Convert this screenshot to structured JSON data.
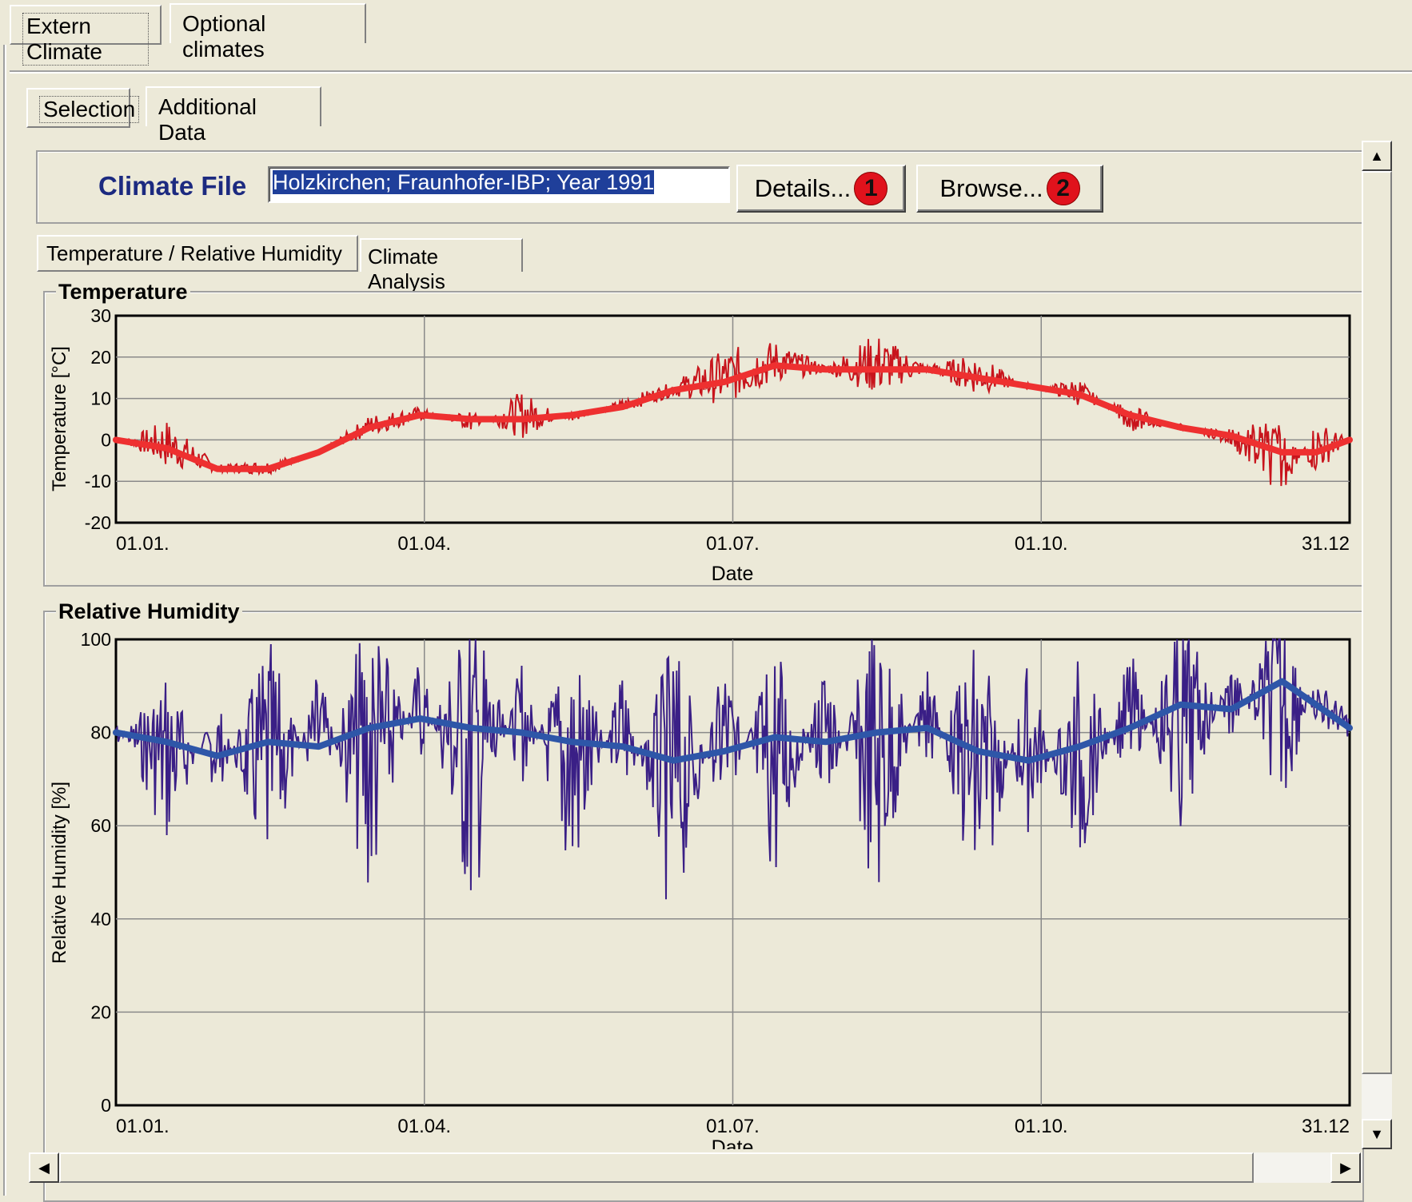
{
  "top_tabs": [
    {
      "label": "Extern Climate",
      "selected": true
    },
    {
      "label": "Optional climates",
      "selected": false
    }
  ],
  "sub_tabs": [
    {
      "label": "Selection",
      "selected": true
    },
    {
      "label": "Additional Data",
      "selected": false
    }
  ],
  "climate_file": {
    "label": "Climate File",
    "value": "Holzkirchen; Fraunhofer-IBP; Year 1991",
    "details_label": "Details...",
    "details_badge": "1",
    "browse_label": "Browse...",
    "browse_badge": "2"
  },
  "chart_tabs": [
    {
      "label": "Temperature / Relative Humidity",
      "selected": true
    },
    {
      "label": "Climate Analysis",
      "selected": false
    }
  ],
  "colors": {
    "temp_raw": "#c8141c",
    "temp_mean": "#ee3030",
    "rh_raw": "#3a1f86",
    "rh_mean": "#2e56a8"
  },
  "chart_data": [
    {
      "type": "line",
      "title": "Temperature",
      "xlabel": "Date",
      "ylabel": "Temperature [°C]",
      "x_ticks": [
        "01.01.",
        "01.04.",
        "01.07.",
        "01.10.",
        "31.12"
      ],
      "y_ticks": [
        "30",
        "20",
        "10",
        "0",
        "-10",
        "-20"
      ],
      "xlim": [
        0,
        365
      ],
      "ylim": [
        -20,
        30
      ],
      "grid": true,
      "series": [
        {
          "values": [
            [
              0,
              -1
            ],
            [
              15,
              5
            ],
            [
              30,
              -6
            ],
            [
              45,
              -5
            ],
            [
              60,
              -3
            ],
            [
              75,
              6
            ],
            [
              90,
              8
            ],
            [
              105,
              2
            ],
            [
              120,
              12
            ],
            [
              135,
              4
            ],
            [
              150,
              10
            ],
            [
              165,
              14
            ],
            [
              180,
              22
            ],
            [
              195,
              24
            ],
            [
              210,
              18
            ],
            [
              225,
              26
            ],
            [
              240,
              18
            ],
            [
              255,
              21
            ],
            [
              270,
              12
            ],
            [
              285,
              15
            ],
            [
              300,
              2
            ],
            [
              315,
              4
            ],
            [
              330,
              -2
            ],
            [
              345,
              -14
            ],
            [
              355,
              5
            ],
            [
              365,
              0
            ]
          ]
        },
        {
          "values": [
            [
              0,
              0
            ],
            [
              15,
              -2
            ],
            [
              30,
              -7
            ],
            [
              45,
              -7
            ],
            [
              60,
              -3
            ],
            [
              75,
              3
            ],
            [
              90,
              6
            ],
            [
              105,
              5
            ],
            [
              120,
              5
            ],
            [
              135,
              6
            ],
            [
              150,
              8
            ],
            [
              165,
              12
            ],
            [
              180,
              14
            ],
            [
              195,
              18
            ],
            [
              210,
              17
            ],
            [
              225,
              17
            ],
            [
              240,
              17
            ],
            [
              255,
              15
            ],
            [
              270,
              13
            ],
            [
              285,
              11
            ],
            [
              300,
              6
            ],
            [
              315,
              3
            ],
            [
              330,
              1
            ],
            [
              345,
              -3
            ],
            [
              355,
              -3
            ],
            [
              365,
              0
            ]
          ]
        }
      ]
    },
    {
      "type": "line",
      "title": "Relative Humidity",
      "xlabel": "Date",
      "ylabel": "Relative Humidity [%]",
      "x_ticks": [
        "01.01.",
        "01.04.",
        "01.07.",
        "01.10.",
        "31.12"
      ],
      "y_ticks": [
        "100",
        "80",
        "60",
        "40",
        "20",
        "0"
      ],
      "xlim": [
        0,
        365
      ],
      "ylim": [
        0,
        100
      ],
      "grid": true,
      "series": [
        {
          "values": [
            [
              0,
              85
            ],
            [
              15,
              55
            ],
            [
              30,
              88
            ],
            [
              45,
              45
            ],
            [
              60,
              95
            ],
            [
              75,
              40
            ],
            [
              90,
              98
            ],
            [
              105,
              38
            ],
            [
              120,
              97
            ],
            [
              135,
              42
            ],
            [
              150,
              96
            ],
            [
              165,
              35
            ],
            [
              180,
              98
            ],
            [
              195,
              45
            ],
            [
              210,
              99
            ],
            [
              225,
              40
            ],
            [
              240,
              98
            ],
            [
              255,
              37
            ],
            [
              270,
              97
            ],
            [
              285,
              48
            ],
            [
              300,
              99
            ],
            [
              315,
              55
            ],
            [
              330,
              97
            ],
            [
              345,
              62
            ],
            [
              355,
              92
            ],
            [
              365,
              84
            ]
          ]
        },
        {
          "values": [
            [
              0,
              80
            ],
            [
              15,
              78
            ],
            [
              30,
              75
            ],
            [
              45,
              78
            ],
            [
              60,
              77
            ],
            [
              75,
              81
            ],
            [
              90,
              83
            ],
            [
              105,
              81
            ],
            [
              120,
              80
            ],
            [
              135,
              78
            ],
            [
              150,
              77
            ],
            [
              165,
              74
            ],
            [
              180,
              76
            ],
            [
              195,
              79
            ],
            [
              210,
              78
            ],
            [
              225,
              80
            ],
            [
              240,
              81
            ],
            [
              255,
              76
            ],
            [
              270,
              74
            ],
            [
              285,
              77
            ],
            [
              300,
              81
            ],
            [
              315,
              86
            ],
            [
              330,
              85
            ],
            [
              345,
              91
            ],
            [
              355,
              86
            ],
            [
              365,
              81
            ]
          ]
        }
      ]
    }
  ]
}
